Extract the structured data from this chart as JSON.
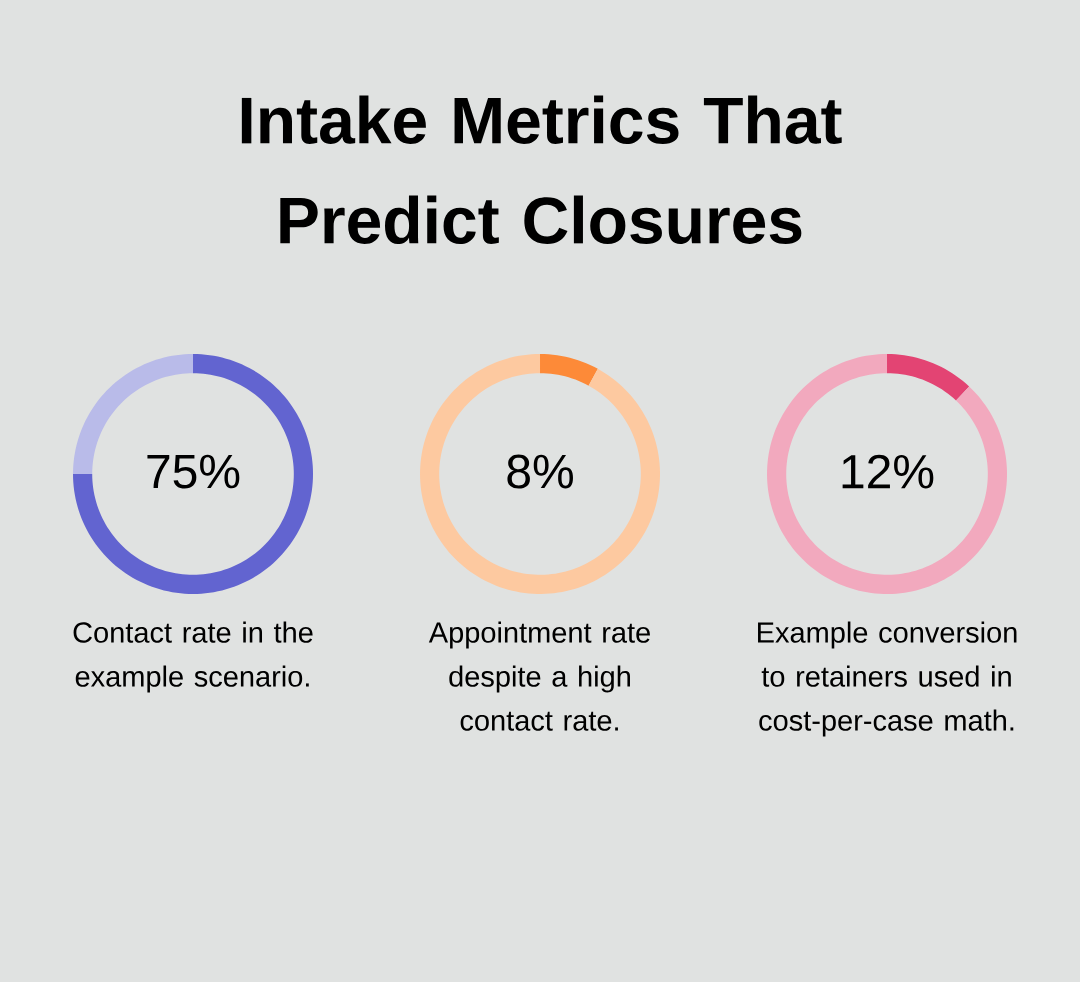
{
  "chart_data": [
    {
      "type": "donut",
      "title": "Intake Metrics That Predict Closures",
      "categories": [
        null,
        null
      ],
      "values": [
        75,
        25
      ],
      "colors": [
        "#6264d0",
        "#b9bbe9"
      ],
      "value_labels": [
        "75%",
        null
      ],
      "annotations": [
        "Contact rate in the example scenario."
      ]
    },
    {
      "type": "donut",
      "categories": [
        null,
        null
      ],
      "values": [
        8,
        92
      ],
      "colors": [
        "#fd8a38",
        "#fdc9a0"
      ],
      "value_labels": [
        "8%",
        null
      ],
      "annotations": [
        "Appointment rate despite a high contact rate."
      ]
    },
    {
      "type": "donut",
      "categories": [
        null,
        null
      ],
      "values": [
        12,
        88
      ],
      "colors": [
        "#e34473",
        "#f2a9be"
      ],
      "value_labels": [
        "12%",
        null
      ],
      "annotations": [
        "Example conversion to retainers used in cost-per-case math."
      ]
    }
  ]
}
